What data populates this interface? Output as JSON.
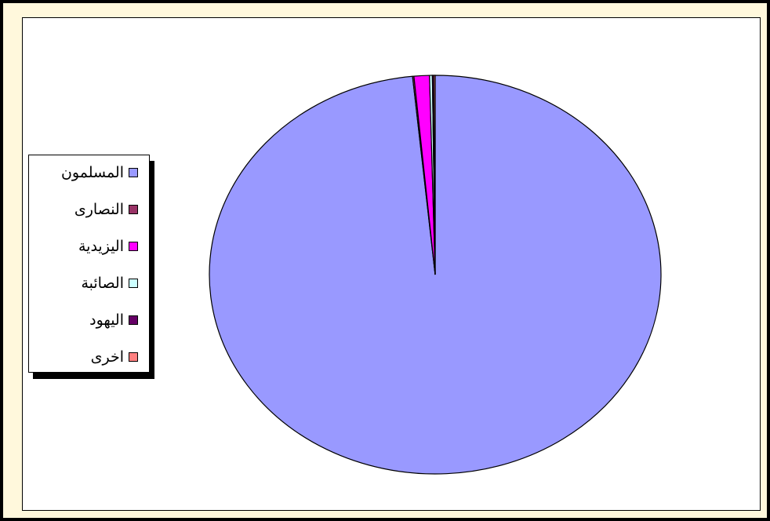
{
  "chart_data": {
    "type": "pie",
    "title": "",
    "categories": [
      "المسلمون",
      "النصارى",
      "اليزيدية",
      "الصائبة",
      "اليهود",
      "اخرى"
    ],
    "values": [
      98.4,
      0.1,
      1.1,
      0.2,
      0.1,
      0.1
    ],
    "colors": [
      "#9999ff",
      "#993366",
      "#ff00ff",
      "#ccffff",
      "#660066",
      "#ff8080"
    ],
    "legend_position": "left"
  },
  "legend": {
    "items": [
      {
        "label": "المسلمون",
        "color": "#9999ff"
      },
      {
        "label": "النصارى",
        "color": "#993366"
      },
      {
        "label": "اليزيدية",
        "color": "#ff00ff"
      },
      {
        "label": "الصائبة",
        "color": "#ccffff"
      },
      {
        "label": "اليهود",
        "color": "#660066"
      },
      {
        "label": "اخرى",
        "color": "#ff8080"
      }
    ]
  }
}
